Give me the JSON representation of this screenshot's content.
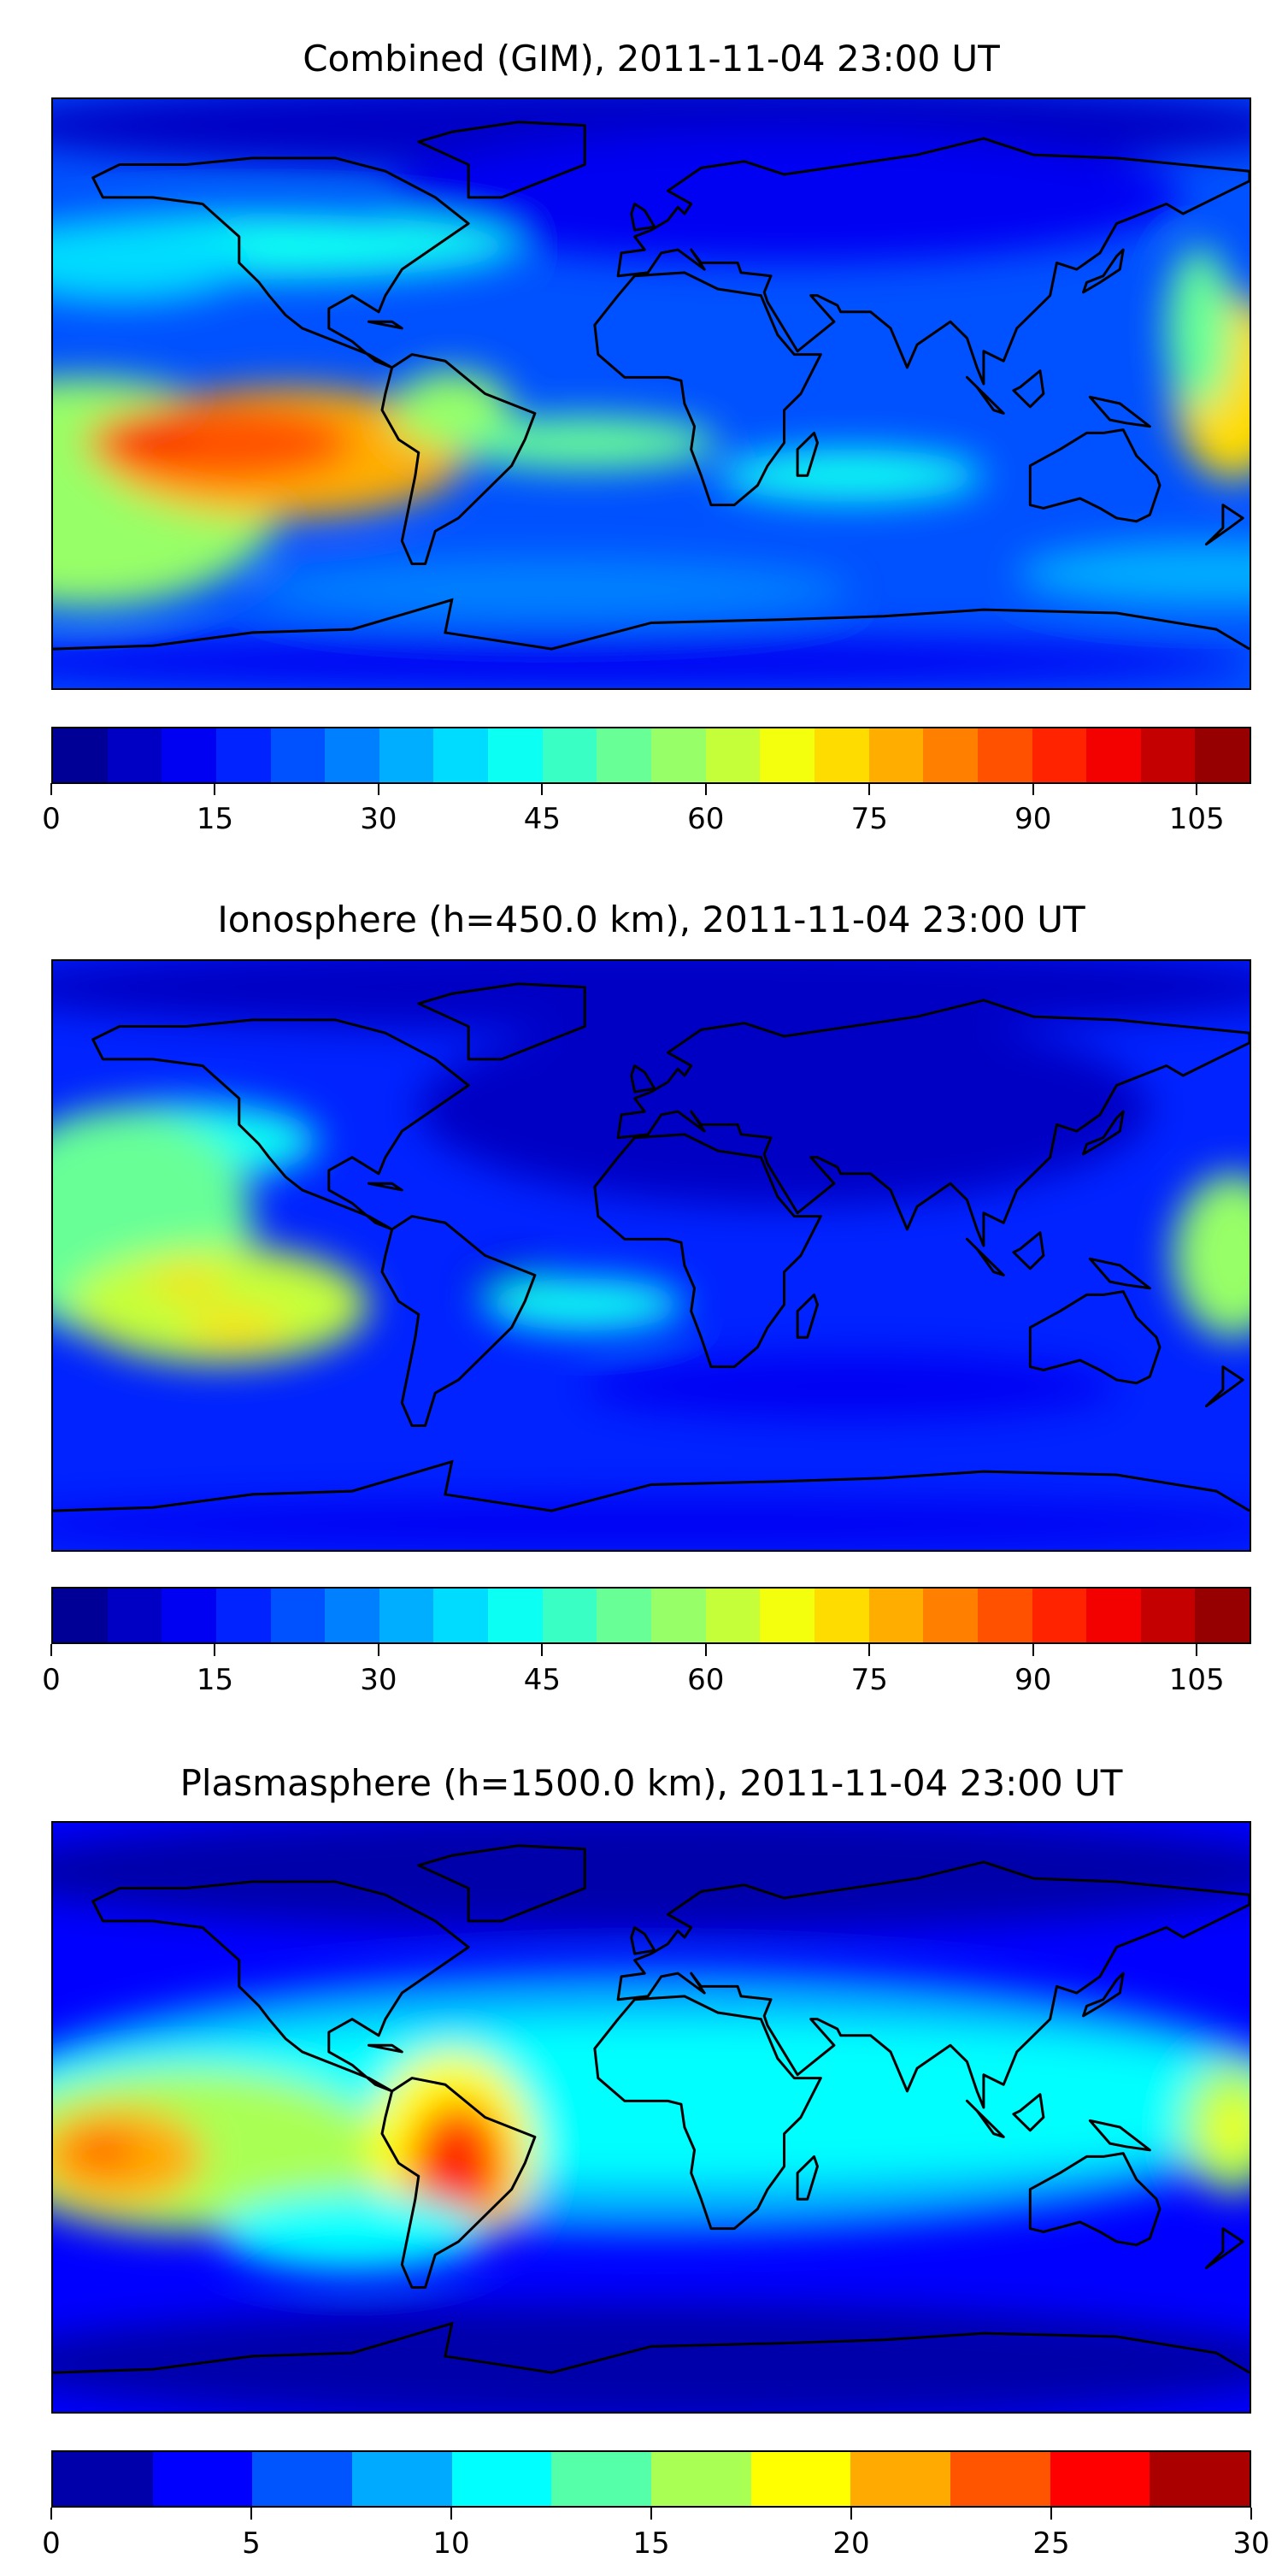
{
  "chart_data": [
    {
      "type": "heatmap",
      "title": "Combined (GIM), 2011-11-04 23:00 UT",
      "projection": "plate carree, global",
      "colorbar": {
        "vmin": 0,
        "vmax": 110,
        "step": 5,
        "ticks": [
          0,
          15,
          30,
          45,
          60,
          75,
          90,
          105
        ]
      },
      "features": [
        {
          "region": "central-south Pacific",
          "value": 90
        },
        {
          "region": "western Pacific edge",
          "value": 75
        },
        {
          "region": "high northern latitudes",
          "value": 10
        }
      ]
    },
    {
      "type": "heatmap",
      "title": "Ionosphere  (h=450.0 km), 2011-11-04 23:00 UT",
      "projection": "plate carree, global",
      "colorbar": {
        "vmin": 0,
        "vmax": 110,
        "step": 5,
        "ticks": [
          0,
          15,
          30,
          45,
          60,
          75,
          90,
          105
        ]
      },
      "features": [
        {
          "region": "central-south Pacific",
          "value": 70
        },
        {
          "region": "western Pacific edge",
          "value": 60
        },
        {
          "region": "Eurasia night side",
          "value": 8
        }
      ]
    },
    {
      "type": "heatmap",
      "title": "Plasmasphere (h=1500.0 km), 2011-11-04 23:00 UT",
      "projection": "plate carree, global",
      "colorbar": {
        "vmin": 0,
        "vmax": 30,
        "step": 2.5,
        "ticks": [
          0,
          5,
          10,
          15,
          20,
          25,
          30
        ]
      },
      "features": [
        {
          "region": "South America",
          "value": 26
        },
        {
          "region": "central Pacific",
          "value": 23
        },
        {
          "region": "polar regions",
          "value": 2
        }
      ]
    }
  ]
}
